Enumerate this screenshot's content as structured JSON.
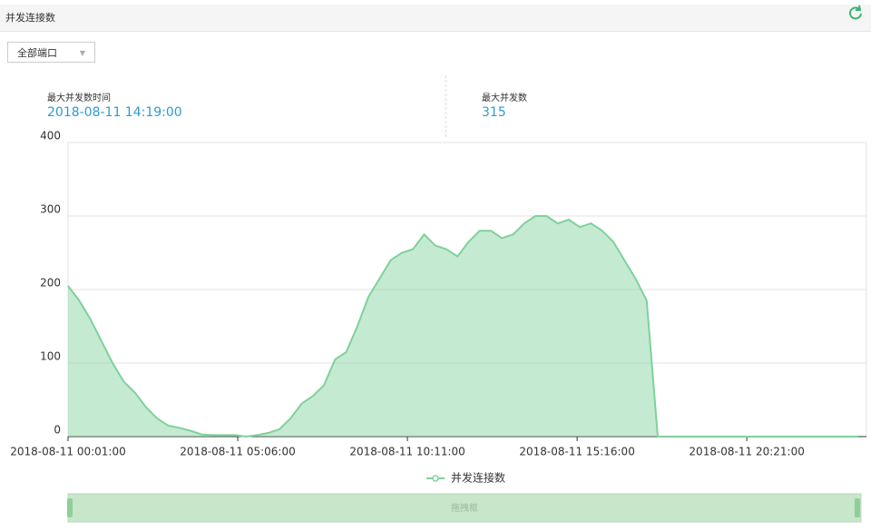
{
  "header": {
    "title": "并发连接数"
  },
  "filter": {
    "selected": "全部端口"
  },
  "stats": {
    "max_time_label": "最大并发数时间",
    "max_time": "2018-08-11 14:19:00",
    "max_count_label": "最大并发数",
    "max_count": "315"
  },
  "slider": {
    "label": "拖拽框"
  },
  "chart_data": {
    "type": "area",
    "series": [
      {
        "name": "并发连接数",
        "color": "#7fd19b",
        "x": [
          "2018-08-11 00:01:00",
          "2018-08-11 00:21:00",
          "2018-08-11 00:41:00",
          "2018-08-11 01:01:00",
          "2018-08-11 01:21:00",
          "2018-08-11 01:41:00",
          "2018-08-11 02:01:00",
          "2018-08-11 02:21:00",
          "2018-08-11 02:41:00",
          "2018-08-11 03:01:00",
          "2018-08-11 03:21:00",
          "2018-08-11 03:41:00",
          "2018-08-11 04:01:00",
          "2018-08-11 04:21:00",
          "2018-08-11 04:41:00",
          "2018-08-11 05:01:00",
          "2018-08-11 05:21:00",
          "2018-08-11 05:41:00",
          "2018-08-11 06:01:00",
          "2018-08-11 06:21:00",
          "2018-08-11 06:41:00",
          "2018-08-11 07:01:00",
          "2018-08-11 07:21:00",
          "2018-08-11 07:41:00",
          "2018-08-11 08:01:00",
          "2018-08-11 08:21:00",
          "2018-08-11 08:41:00",
          "2018-08-11 09:01:00",
          "2018-08-11 09:21:00",
          "2018-08-11 09:41:00",
          "2018-08-11 10:01:00",
          "2018-08-11 10:21:00",
          "2018-08-11 10:41:00",
          "2018-08-11 11:01:00",
          "2018-08-11 11:21:00",
          "2018-08-11 11:41:00",
          "2018-08-11 12:01:00",
          "2018-08-11 12:21:00",
          "2018-08-11 12:41:00",
          "2018-08-11 13:01:00",
          "2018-08-11 13:21:00",
          "2018-08-11 13:41:00",
          "2018-08-11 14:01:00",
          "2018-08-11 14:21:00",
          "2018-08-11 14:41:00",
          "2018-08-11 15:01:00",
          "2018-08-11 15:21:00",
          "2018-08-11 15:41:00",
          "2018-08-11 16:01:00",
          "2018-08-11 16:21:00",
          "2018-08-11 16:41:00",
          "2018-08-11 17:01:00",
          "2018-08-11 17:21:00",
          "2018-08-11 17:41:00",
          "2018-08-11 18:01:00",
          "2018-08-11 18:21:00",
          "2018-08-11 18:41:00",
          "2018-08-11 19:01:00",
          "2018-08-11 19:21:00",
          "2018-08-11 19:41:00",
          "2018-08-11 20:01:00",
          "2018-08-11 20:21:00",
          "2018-08-11 20:41:00",
          "2018-08-11 21:01:00",
          "2018-08-11 21:21:00",
          "2018-08-11 21:41:00",
          "2018-08-11 22:01:00",
          "2018-08-11 22:21:00",
          "2018-08-11 22:41:00",
          "2018-08-11 23:01:00",
          "2018-08-11 23:21:00",
          "2018-08-11 23:41:00"
        ],
        "values": [
          205,
          185,
          160,
          130,
          100,
          75,
          60,
          40,
          25,
          15,
          12,
          8,
          3,
          2,
          2,
          2,
          0,
          2,
          5,
          10,
          25,
          45,
          55,
          70,
          105,
          115,
          150,
          190,
          215,
          240,
          250,
          255,
          275,
          260,
          255,
          245,
          265,
          280,
          280,
          270,
          275,
          290,
          300,
          300,
          290,
          295,
          285,
          290,
          280,
          265,
          240,
          215,
          185,
          0,
          0,
          0,
          0,
          0,
          0,
          0,
          0,
          0,
          0,
          0,
          0,
          0,
          0,
          0,
          0,
          0,
          0,
          0
        ]
      }
    ],
    "xlim": [
      "2018-08-11 00:01:00",
      "2018-08-11 23:56:00"
    ],
    "xticks": [
      "2018-08-11 00:01:00",
      "2018-08-11 05:06:00",
      "2018-08-11 10:11:00",
      "2018-08-11 15:16:00",
      "2018-08-11 20:21:00"
    ],
    "ylim": [
      0,
      400
    ],
    "yticks": [
      0,
      100,
      200,
      300,
      400
    ],
    "grid": true
  }
}
